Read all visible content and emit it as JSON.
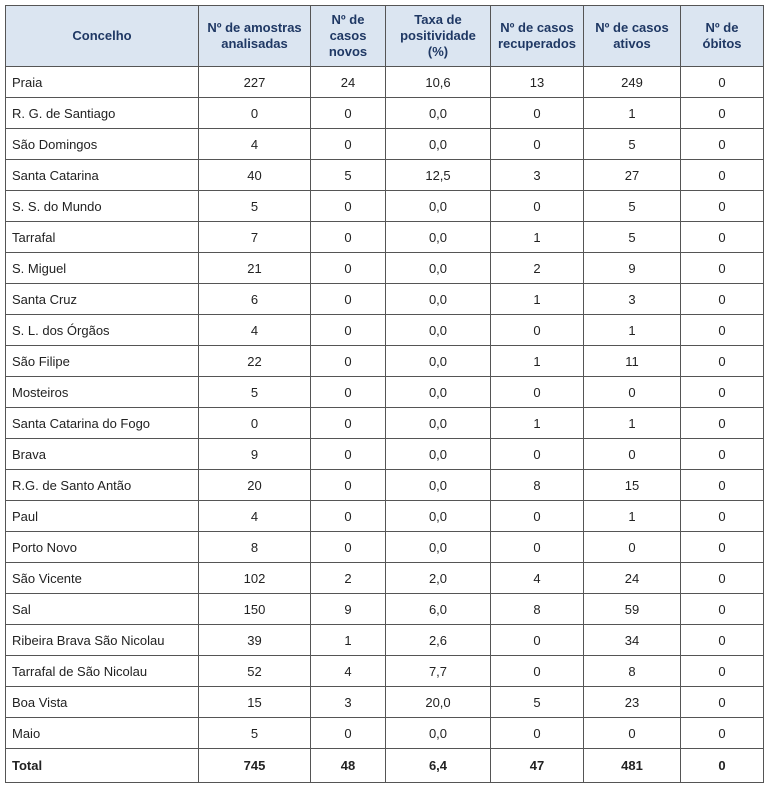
{
  "table": {
    "columns": [
      "Concelho",
      "Nº de amostras analisadas",
      "Nº de casos novos",
      "Taxa de positividade (%)",
      "Nº de casos recuperados",
      "Nº de casos ativos",
      "Nº de óbitos"
    ],
    "rows": [
      [
        "Praia",
        "227",
        "24",
        "10,6",
        "13",
        "249",
        "0"
      ],
      [
        "R. G. de Santiago",
        "0",
        "0",
        "0,0",
        "0",
        "1",
        "0"
      ],
      [
        "São Domingos",
        "4",
        "0",
        "0,0",
        "0",
        "5",
        "0"
      ],
      [
        "Santa Catarina",
        "40",
        "5",
        "12,5",
        "3",
        "27",
        "0"
      ],
      [
        "S. S. do Mundo",
        "5",
        "0",
        "0,0",
        "0",
        "5",
        "0"
      ],
      [
        "Tarrafal",
        "7",
        "0",
        "0,0",
        "1",
        "5",
        "0"
      ],
      [
        "S. Miguel",
        "21",
        "0",
        "0,0",
        "2",
        "9",
        "0"
      ],
      [
        "Santa Cruz",
        "6",
        "0",
        "0,0",
        "1",
        "3",
        "0"
      ],
      [
        "S. L. dos Órgãos",
        "4",
        "0",
        "0,0",
        "0",
        "1",
        "0"
      ],
      [
        "São Filipe",
        "22",
        "0",
        "0,0",
        "1",
        "11",
        "0"
      ],
      [
        "Mosteiros",
        "5",
        "0",
        "0,0",
        "0",
        "0",
        "0"
      ],
      [
        "Santa Catarina do Fogo",
        "0",
        "0",
        "0,0",
        "1",
        "1",
        "0"
      ],
      [
        "Brava",
        "9",
        "0",
        "0,0",
        "0",
        "0",
        "0"
      ],
      [
        "R.G. de Santo Antão",
        "20",
        "0",
        "0,0",
        "8",
        "15",
        "0"
      ],
      [
        "Paul",
        "4",
        "0",
        "0,0",
        "0",
        "1",
        "0"
      ],
      [
        "Porto Novo",
        "8",
        "0",
        "0,0",
        "0",
        "0",
        "0"
      ],
      [
        "São Vicente",
        "102",
        "2",
        "2,0",
        "4",
        "24",
        "0"
      ],
      [
        "Sal",
        "150",
        "9",
        "6,0",
        "8",
        "59",
        "0"
      ],
      [
        "Ribeira Brava São Nicolau",
        "39",
        "1",
        "2,6",
        "0",
        "34",
        "0"
      ],
      [
        "Tarrafal de São Nicolau",
        "52",
        "4",
        "7,7",
        "0",
        "8",
        "0"
      ],
      [
        "Boa Vista",
        "15",
        "3",
        "20,0",
        "5",
        "23",
        "0"
      ],
      [
        "Maio",
        "5",
        "0",
        "0,0",
        "0",
        "0",
        "0"
      ]
    ],
    "total": [
      "Total",
      "745",
      "48",
      "6,4",
      "47",
      "481",
      "0"
    ]
  }
}
